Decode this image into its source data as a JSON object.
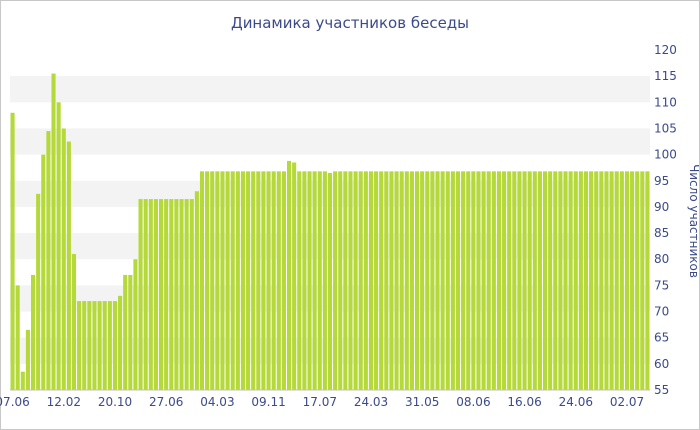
{
  "chart_data": {
    "type": "bar",
    "title": "Динамика участников беседы",
    "ylabel": "Число участников",
    "xlabel": "",
    "ylim": [
      55,
      120
    ],
    "yticks": [
      55,
      60,
      65,
      70,
      75,
      80,
      85,
      90,
      95,
      100,
      105,
      110,
      115,
      120
    ],
    "x_tick_labels": [
      {
        "index": 0,
        "label": "07.06"
      },
      {
        "index": 10,
        "label": "12.02"
      },
      {
        "index": 20,
        "label": "20.10"
      },
      {
        "index": 30,
        "label": "27.06"
      },
      {
        "index": 40,
        "label": "04.03"
      },
      {
        "index": 50,
        "label": "09.11"
      },
      {
        "index": 60,
        "label": "17.07"
      },
      {
        "index": 70,
        "label": "24.03"
      },
      {
        "index": 80,
        "label": "31.05"
      },
      {
        "index": 90,
        "label": "08.06"
      },
      {
        "index": 100,
        "label": "16.06"
      },
      {
        "index": 110,
        "label": "24.06"
      },
      {
        "index": 120,
        "label": "02.07"
      }
    ],
    "grid": "alternating horizontal bands",
    "bar_color": "#b5d93a",
    "values": [
      108,
      75,
      58.5,
      66.5,
      77,
      92.5,
      100,
      104.5,
      115.5,
      110,
      105,
      102.5,
      81,
      72,
      72,
      72,
      72,
      72,
      72,
      72,
      72,
      73,
      77,
      77,
      80,
      91.5,
      91.5,
      91.5,
      91.5,
      91.5,
      91.5,
      91.5,
      91.5,
      91.5,
      91.5,
      91.5,
      93,
      96.8,
      96.8,
      96.8,
      96.8,
      96.8,
      96.8,
      96.8,
      96.8,
      96.8,
      96.8,
      96.8,
      96.8,
      96.8,
      96.8,
      96.8,
      96.8,
      96.8,
      98.8,
      98.5,
      96.8,
      96.8,
      96.8,
      96.8,
      96.8,
      96.8,
      96.5,
      96.8,
      96.8,
      96.8,
      96.8,
      96.8,
      96.8,
      96.8,
      96.8,
      96.8,
      96.8,
      96.8,
      96.8,
      96.8,
      96.8,
      96.8,
      96.8,
      96.8,
      96.8,
      96.8,
      96.8,
      96.8,
      96.8,
      96.8,
      96.8,
      96.8,
      96.8,
      96.8,
      96.8,
      96.8,
      96.8,
      96.8,
      96.8,
      96.8,
      96.8,
      96.8,
      96.8,
      96.8,
      96.8,
      96.8,
      96.8,
      96.8,
      96.8,
      96.8,
      96.8,
      96.8,
      96.8,
      96.8,
      96.8,
      96.8,
      96.8,
      96.8,
      96.8,
      96.8,
      96.8,
      96.8,
      96.8,
      96.8,
      96.8,
      96.8,
      96.8,
      96.8,
      96.8
    ]
  }
}
